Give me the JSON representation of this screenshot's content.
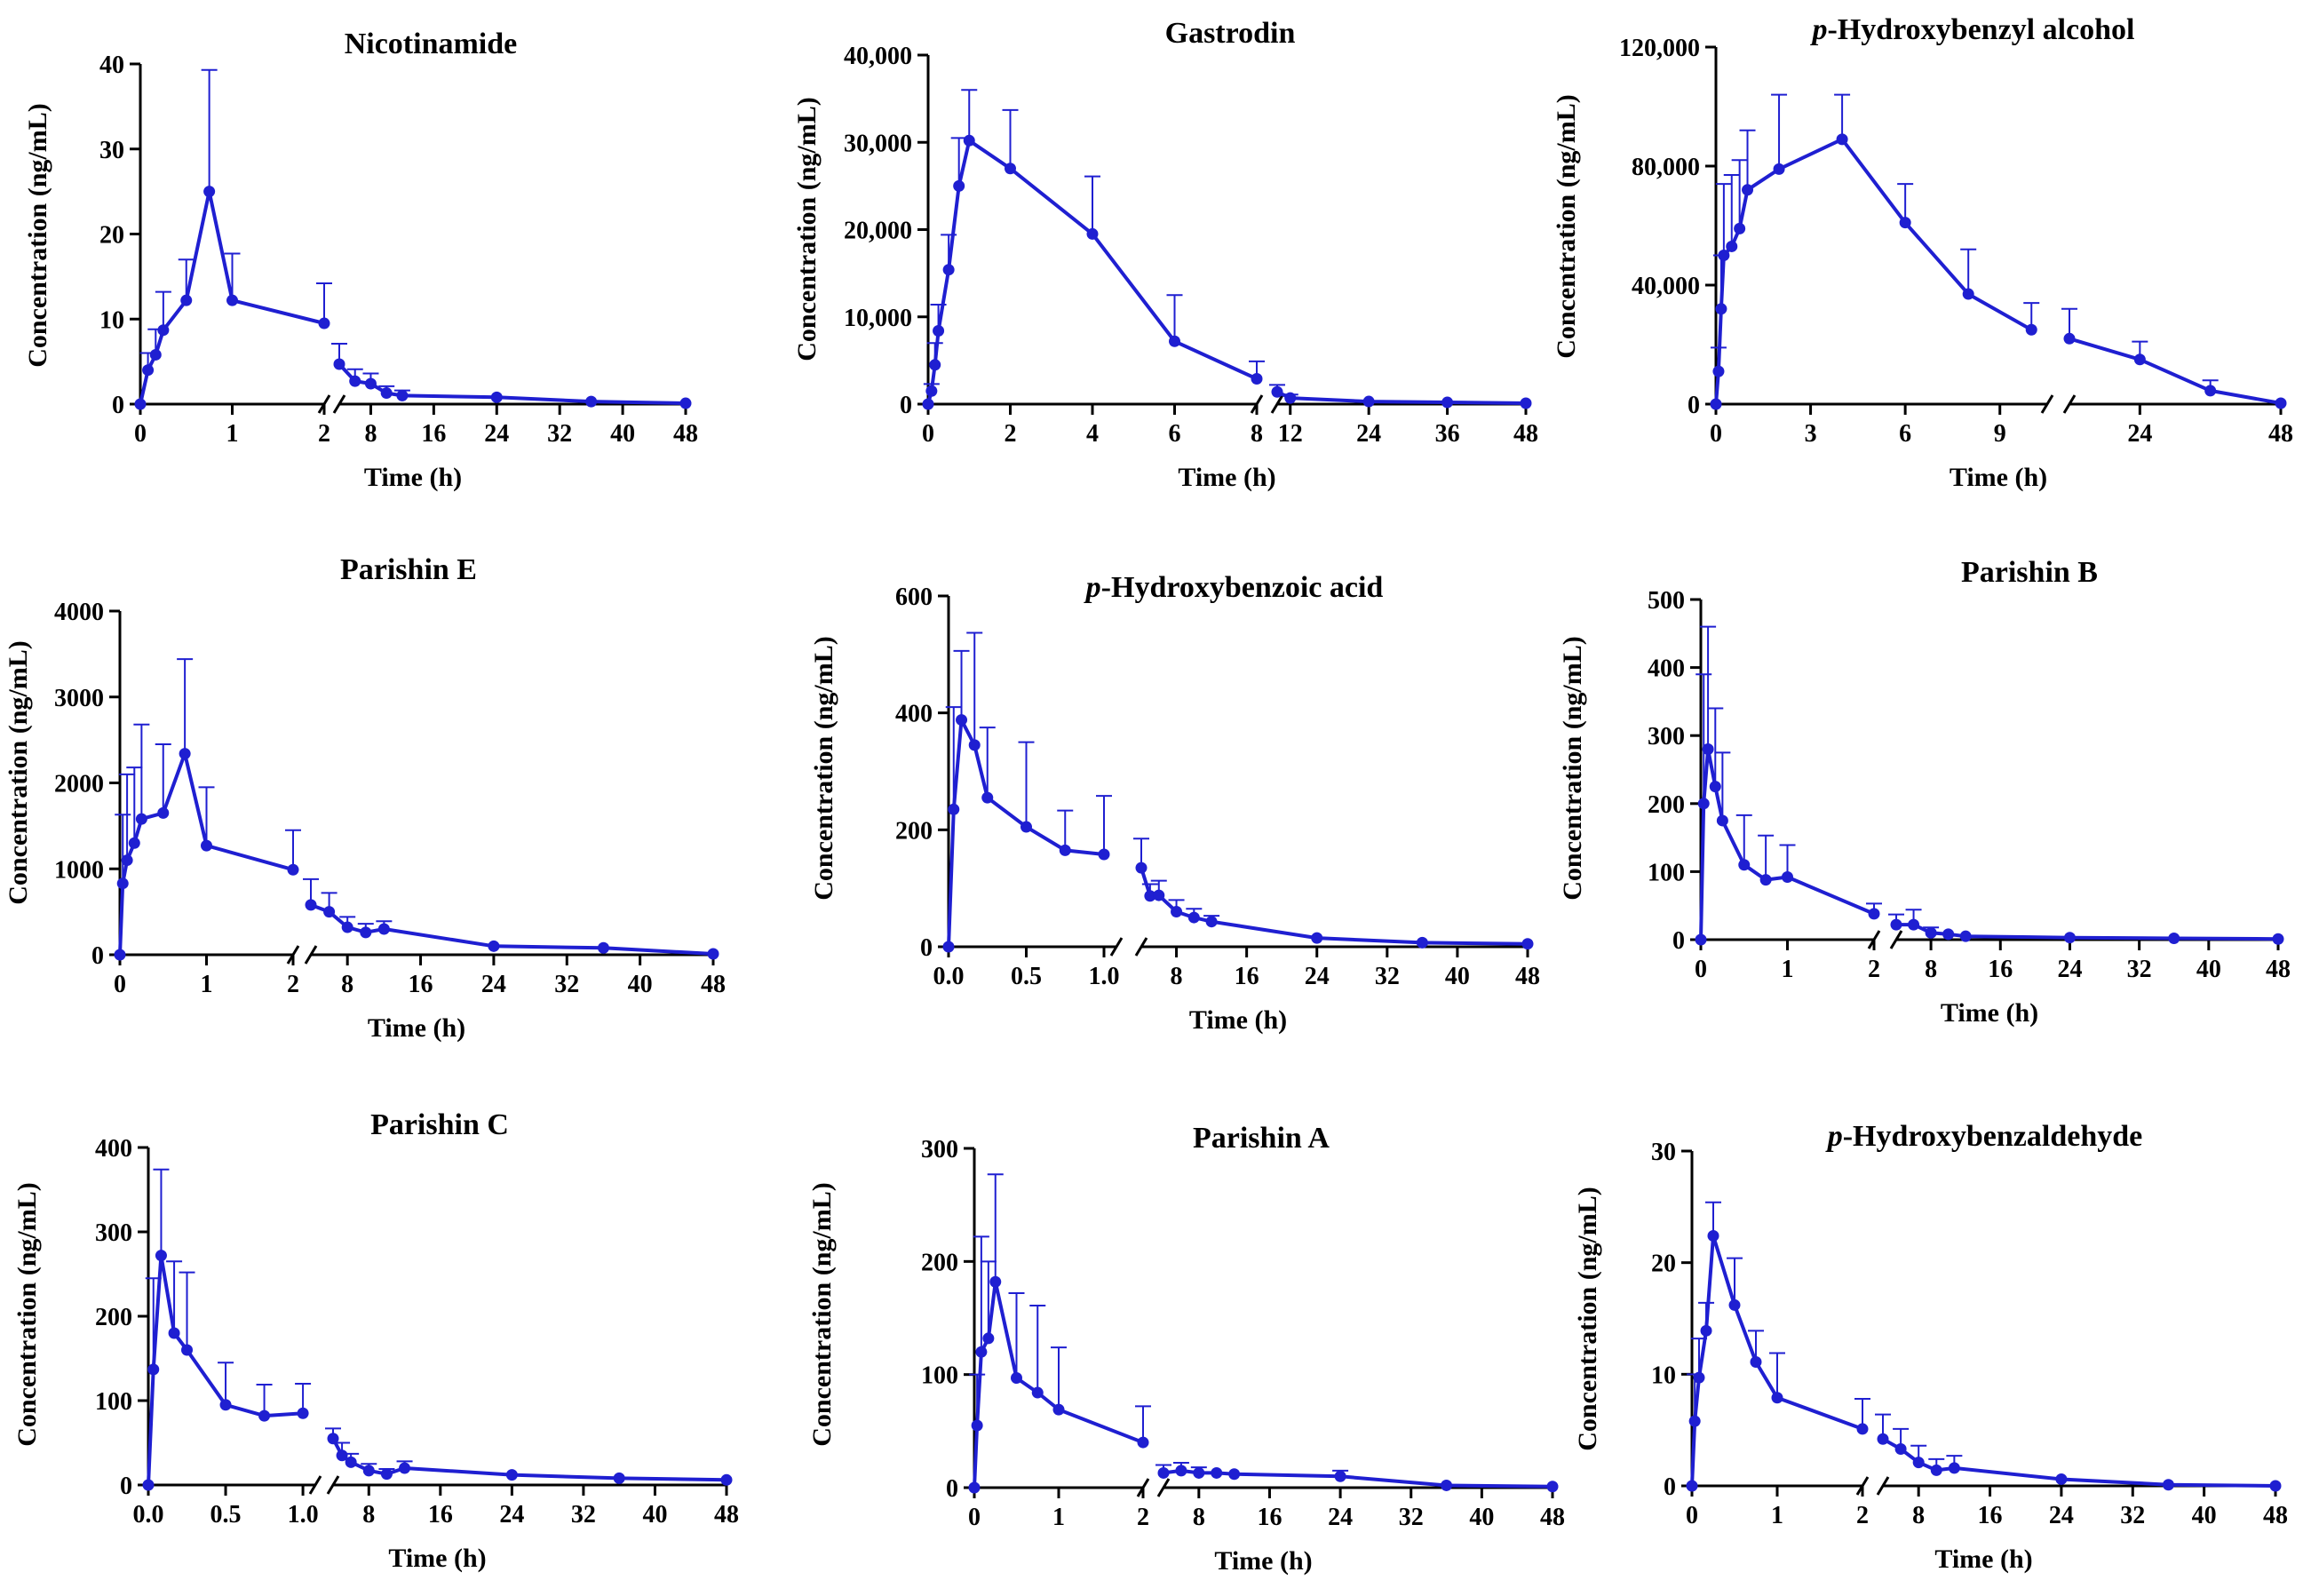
{
  "figure": {
    "series_color": "#1f1fd1",
    "axis_color": "#000000"
  },
  "chart_data": [
    {
      "type": "line",
      "title": "Nicotinamide",
      "xlabel": "Time (h)",
      "ylabel": "Concentration (ng/mL)",
      "ylim": [
        0,
        40
      ],
      "yticks": [
        0,
        10,
        20,
        30,
        40
      ],
      "ytick_labels": [
        "0",
        "10",
        "20",
        "30",
        "40"
      ],
      "x_break": true,
      "segments": [
        {
          "xlim": [
            0,
            2
          ],
          "xticks": [
            0,
            1,
            2
          ],
          "xtick_labels": [
            "0",
            "1",
            "2"
          ]
        },
        {
          "xlim": [
            4,
            48
          ],
          "xticks": [
            8,
            16,
            24,
            32,
            40,
            48
          ],
          "xtick_labels": [
            "8",
            "16",
            "24",
            "32",
            "40",
            "48"
          ]
        }
      ],
      "series": [
        {
          "name": "Nicotinamide",
          "x": [
            0,
            0.083,
            0.167,
            0.25,
            0.5,
            0.75,
            1,
            2,
            4,
            6,
            8,
            10,
            12,
            24,
            36,
            48
          ],
          "y": [
            0,
            4.0,
            5.8,
            8.7,
            12.2,
            25.0,
            12.2,
            9.5,
            4.7,
            2.7,
            2.4,
            1.3,
            1.0,
            0.8,
            0.3,
            0.1
          ],
          "err": [
            0,
            2.0,
            3.0,
            4.5,
            4.8,
            14.3,
            5.5,
            4.7,
            2.4,
            1.4,
            1.2,
            0.8,
            0.6,
            0,
            0,
            0
          ]
        }
      ]
    },
    {
      "type": "line",
      "title": "Gastrodin",
      "xlabel": "Time (h)",
      "ylabel": "Concentration (ng/mL)",
      "ylim": [
        0,
        40000
      ],
      "yticks": [
        0,
        10000,
        20000,
        30000,
        40000
      ],
      "ytick_labels": [
        "0",
        "10,000",
        "20,000",
        "30,000",
        "40,000"
      ],
      "x_break": true,
      "segments": [
        {
          "xlim": [
            0,
            8
          ],
          "xticks": [
            0,
            2,
            4,
            6,
            8
          ],
          "xtick_labels": [
            "0",
            "2",
            "4",
            "6",
            "8"
          ]
        },
        {
          "xlim": [
            10,
            48
          ],
          "xticks": [
            12,
            24,
            36,
            48
          ],
          "xtick_labels": [
            "12",
            "24",
            "36",
            "48"
          ]
        }
      ],
      "series": [
        {
          "name": "Gastrodin",
          "x": [
            0,
            0.083,
            0.167,
            0.25,
            0.5,
            0.75,
            1,
            2,
            4,
            6,
            8,
            10,
            12,
            24,
            36,
            48
          ],
          "y": [
            0,
            1500,
            4500,
            8400,
            15400,
            25000,
            30200,
            27000,
            19500,
            7200,
            2900,
            1400,
            700,
            300,
            200,
            100
          ],
          "err": [
            0,
            800,
            2500,
            3000,
            4000,
            5500,
            5800,
            6700,
            6600,
            5300,
            2000,
            800,
            400,
            0,
            0,
            0
          ]
        }
      ]
    },
    {
      "type": "line",
      "title": "p-Hydroxybenzyl alcohol",
      "title_italic_prefix": "p",
      "title_rest": "-Hydroxybenzyl alcohol",
      "xlabel": "Time (h)",
      "ylabel": "Concentration (ng/mL)",
      "ylim": [
        0,
        120000
      ],
      "yticks": [
        0,
        40000,
        80000,
        120000
      ],
      "ytick_labels": [
        "0",
        "40,000",
        "80,000",
        "120,000"
      ],
      "x_break": true,
      "segments": [
        {
          "xlim": [
            0,
            10.5
          ],
          "xticks": [
            0,
            3,
            6,
            9
          ],
          "xtick_labels": [
            "0",
            "3",
            "6",
            "9"
          ]
        },
        {
          "xlim": [
            12,
            48
          ],
          "xticks": [
            24,
            48
          ],
          "xtick_labels": [
            "24",
            "48"
          ]
        }
      ],
      "series": [
        {
          "name": "p-Hydroxybenzyl alcohol",
          "x": [
            0,
            0.083,
            0.167,
            0.25,
            0.5,
            0.75,
            1,
            2,
            4,
            6,
            8,
            10,
            12,
            24,
            36,
            48
          ],
          "y": [
            0,
            11000,
            32000,
            50000,
            53000,
            59000,
            72000,
            79000,
            89000,
            61000,
            37000,
            25000,
            22000,
            15000,
            4500,
            300
          ],
          "err": [
            0,
            8000,
            18000,
            24000,
            24000,
            23000,
            20000,
            25000,
            15000,
            13000,
            15000,
            9000,
            10000,
            6000,
            3500,
            0
          ]
        }
      ]
    },
    {
      "type": "line",
      "title": "Parishin E",
      "xlabel": "Time (h)",
      "ylabel": "Concentration (ng/mL)",
      "ylim": [
        0,
        4000
      ],
      "yticks": [
        0,
        1000,
        2000,
        3000,
        4000
      ],
      "ytick_labels": [
        "0",
        "1000",
        "2000",
        "3000",
        "4000"
      ],
      "x_break": true,
      "segments": [
        {
          "xlim": [
            0,
            2
          ],
          "xticks": [
            0,
            1,
            2
          ],
          "xtick_labels": [
            "0",
            "1",
            "2"
          ]
        },
        {
          "xlim": [
            4,
            48
          ],
          "xticks": [
            8,
            16,
            24,
            32,
            40,
            48
          ],
          "xtick_labels": [
            "8",
            "16",
            "24",
            "32",
            "40",
            "48"
          ]
        }
      ],
      "series": [
        {
          "name": "Parishin E",
          "x": [
            0,
            0.033,
            0.083,
            0.167,
            0.25,
            0.5,
            0.75,
            1,
            2,
            4,
            6,
            8,
            10,
            12,
            24,
            36,
            48
          ],
          "y": [
            0,
            830,
            1100,
            1300,
            1580,
            1650,
            2340,
            1270,
            990,
            580,
            500,
            320,
            260,
            300,
            100,
            80,
            10
          ],
          "err": [
            0,
            800,
            1000,
            880,
            1100,
            800,
            1100,
            680,
            460,
            300,
            220,
            120,
            100,
            90,
            0,
            0,
            0
          ]
        }
      ]
    },
    {
      "type": "line",
      "title": "p-Hydroxybenzoic acid",
      "title_italic_prefix": "p",
      "title_rest": "-Hydroxybenzoic acid",
      "xlabel": "Time (h)",
      "ylabel": "Concentration (ng/mL)",
      "ylim": [
        0,
        600
      ],
      "yticks": [
        0,
        200,
        400,
        600
      ],
      "ytick_labels": [
        "0",
        "200",
        "400",
        "600"
      ],
      "x_break": true,
      "segments": [
        {
          "xlim": [
            0,
            1.08
          ],
          "xticks": [
            0,
            0.5,
            1
          ],
          "xtick_labels": [
            "0.0",
            "0.5",
            "1.0"
          ]
        },
        {
          "xlim": [
            4,
            48
          ],
          "xticks": [
            8,
            16,
            24,
            32,
            40,
            48
          ],
          "xtick_labels": [
            "8",
            "16",
            "24",
            "32",
            "40",
            "48"
          ]
        }
      ],
      "series": [
        {
          "name": "p-Hydroxybenzoic acid",
          "x": [
            0,
            0.033,
            0.083,
            0.167,
            0.25,
            0.5,
            0.75,
            1,
            4,
            5,
            6,
            8,
            10,
            12,
            24,
            36,
            48
          ],
          "y": [
            0,
            235,
            388,
            345,
            255,
            205,
            165,
            158,
            135,
            87,
            88,
            60,
            50,
            43,
            15,
            7,
            5
          ],
          "err": [
            0,
            175,
            118,
            192,
            120,
            145,
            68,
            100,
            50,
            20,
            25,
            20,
            15,
            10,
            0,
            0,
            0
          ]
        }
      ]
    },
    {
      "type": "line",
      "title": "Parishin B",
      "xlabel": "Time (h)",
      "ylabel": "Concentration (ng/mL)",
      "ylim": [
        0,
        500
      ],
      "yticks": [
        0,
        100,
        200,
        300,
        400,
        500
      ],
      "ytick_labels": [
        "0",
        "100",
        "200",
        "300",
        "400",
        "500"
      ],
      "x_break": true,
      "segments": [
        {
          "xlim": [
            0,
            2
          ],
          "xticks": [
            0,
            1,
            2
          ],
          "xtick_labels": [
            "0",
            "1",
            "2"
          ]
        },
        {
          "xlim": [
            4,
            48
          ],
          "xticks": [
            8,
            16,
            24,
            32,
            40,
            48
          ],
          "xtick_labels": [
            "8",
            "16",
            "24",
            "32",
            "40",
            "48"
          ]
        }
      ],
      "series": [
        {
          "name": "Parishin B",
          "x": [
            0,
            0.033,
            0.083,
            0.167,
            0.25,
            0.5,
            0.75,
            1,
            2,
            4,
            6,
            8,
            10,
            12,
            24,
            36,
            48
          ],
          "y": [
            0,
            200,
            280,
            225,
            175,
            110,
            88,
            92,
            38,
            22,
            22,
            10,
            8,
            5,
            3,
            2,
            1
          ],
          "err": [
            0,
            190,
            180,
            115,
            100,
            73,
            65,
            47,
            15,
            15,
            22,
            8,
            0,
            0,
            0,
            0,
            0
          ]
        }
      ]
    },
    {
      "type": "line",
      "title": "Parishin C",
      "xlabel": "Time (h)",
      "ylabel": "Concentration (ng/mL)",
      "ylim": [
        0,
        400
      ],
      "yticks": [
        0,
        100,
        200,
        300,
        400
      ],
      "ytick_labels": [
        "0",
        "100",
        "200",
        "300",
        "400"
      ],
      "x_break": true,
      "segments": [
        {
          "xlim": [
            0,
            1.08
          ],
          "xticks": [
            0,
            0.5,
            1
          ],
          "xtick_labels": [
            "0.0",
            "0.5",
            "1.0"
          ]
        },
        {
          "xlim": [
            4,
            48
          ],
          "xticks": [
            8,
            16,
            24,
            32,
            40,
            48
          ],
          "xtick_labels": [
            "8",
            "16",
            "24",
            "32",
            "40",
            "48"
          ]
        }
      ],
      "series": [
        {
          "name": "Parishin C",
          "x": [
            0,
            0.033,
            0.083,
            0.167,
            0.25,
            0.5,
            0.75,
            1,
            4,
            5,
            6,
            8,
            10,
            12,
            24,
            36,
            48
          ],
          "y": [
            0,
            137,
            272,
            180,
            160,
            95,
            82,
            85,
            55,
            35,
            27,
            17,
            13,
            20,
            12,
            8,
            6
          ],
          "err": [
            0,
            108,
            102,
            85,
            92,
            50,
            37,
            35,
            12,
            15,
            10,
            8,
            6,
            8,
            0,
            0,
            0
          ]
        }
      ]
    },
    {
      "type": "line",
      "title": "Parishin A",
      "xlabel": "Time (h)",
      "ylabel": "Concentration (ng/mL)",
      "ylim": [
        0,
        300
      ],
      "yticks": [
        0,
        100,
        200,
        300
      ],
      "ytick_labels": [
        "0",
        "100",
        "200",
        "300"
      ],
      "x_break": true,
      "segments": [
        {
          "xlim": [
            0,
            2
          ],
          "xticks": [
            0,
            1,
            2
          ],
          "xtick_labels": [
            "0",
            "1",
            "2"
          ]
        },
        {
          "xlim": [
            4,
            48
          ],
          "xticks": [
            8,
            16,
            24,
            32,
            40,
            48
          ],
          "xtick_labels": [
            "8",
            "16",
            "24",
            "32",
            "40",
            "48"
          ]
        }
      ],
      "series": [
        {
          "name": "Parishin A",
          "x": [
            0,
            0.033,
            0.083,
            0.167,
            0.25,
            0.5,
            0.75,
            1,
            2,
            4,
            6,
            8,
            10,
            12,
            24,
            36,
            48
          ],
          "y": [
            0,
            55,
            120,
            132,
            182,
            97,
            84,
            69,
            40,
            13,
            15,
            13,
            13,
            12,
            10,
            2,
            1
          ],
          "err": [
            0,
            45,
            102,
            68,
            95,
            75,
            77,
            55,
            32,
            7,
            7,
            5,
            0,
            0,
            5,
            0,
            0
          ]
        }
      ]
    },
    {
      "type": "line",
      "title": "p-Hydroxybenzaldehyde",
      "title_italic_prefix": "p",
      "title_rest": "-Hydroxybenzaldehyde",
      "xlabel": "Time (h)",
      "ylabel": "Concentration (ng/mL)",
      "ylim": [
        0,
        30
      ],
      "yticks": [
        0,
        10,
        20,
        30
      ],
      "ytick_labels": [
        "0",
        "10",
        "20",
        "30"
      ],
      "x_break": true,
      "segments": [
        {
          "xlim": [
            0,
            2
          ],
          "xticks": [
            0,
            1,
            2
          ],
          "xtick_labels": [
            "0",
            "1",
            "2"
          ]
        },
        {
          "xlim": [
            4,
            48
          ],
          "xticks": [
            8,
            16,
            24,
            32,
            40,
            48
          ],
          "xtick_labels": [
            "8",
            "16",
            "24",
            "32",
            "40",
            "48"
          ]
        }
      ],
      "series": [
        {
          "name": "p-Hydroxybenzaldehyde",
          "x": [
            0,
            0.033,
            0.083,
            0.167,
            0.25,
            0.5,
            0.75,
            1,
            2,
            4,
            6,
            8,
            10,
            12,
            24,
            36,
            48
          ],
          "y": [
            0,
            5.8,
            9.7,
            13.9,
            22.4,
            16.2,
            11.1,
            7.9,
            5.1,
            4.2,
            3.3,
            2.1,
            1.4,
            1.6,
            0.6,
            0.1,
            0
          ],
          "err": [
            0,
            4.2,
            3.5,
            2.5,
            3.0,
            4.2,
            2.8,
            4.0,
            2.7,
            2.2,
            1.8,
            1.5,
            1.0,
            1.1,
            0,
            0,
            0
          ]
        }
      ]
    }
  ]
}
